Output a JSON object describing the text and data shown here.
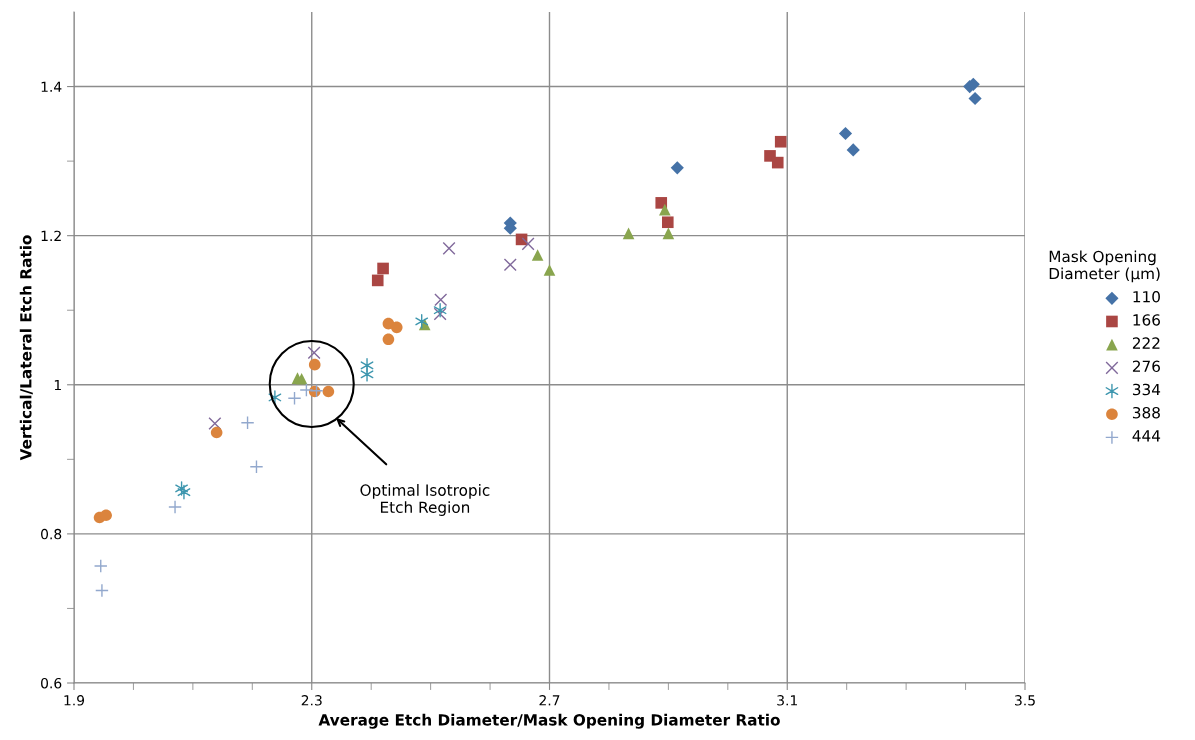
{
  "chart_data": {
    "type": "scatter",
    "xlabel": "Average Etch Diameter/Mask Opening Diameter Ratio",
    "ylabel": "Vertical/Lateral Etch Ratio",
    "legend_title": "Mask Opening\nDiameter (µm)",
    "xlim": [
      1.9,
      3.5
    ],
    "ylim": [
      0.6,
      1.5
    ],
    "xticks": [
      1.9,
      {
        "value": 2.0,
        "label": null
      },
      {
        "value": 2.1,
        "label": null
      },
      {
        "value": 2.2,
        "label": null
      },
      2.3,
      {
        "value": 2.4,
        "label": null
      },
      {
        "value": 2.5,
        "label": null
      },
      {
        "value": 2.6,
        "label": null
      },
      2.7,
      {
        "value": 2.8,
        "label": null
      },
      {
        "value": 2.9,
        "label": null
      },
      {
        "value": 3.0,
        "label": null
      },
      3.1,
      {
        "value": 3.2,
        "label": null
      },
      {
        "value": 3.3,
        "label": null
      },
      {
        "value": 3.4,
        "label": null
      },
      3.5
    ],
    "yticks": [
      0.6,
      {
        "value": 0.7,
        "label": null
      },
      0.8,
      {
        "value": 0.9,
        "label": null
      },
      1,
      {
        "value": 1.1,
        "label": null
      },
      1.2,
      {
        "value": 1.3,
        "label": null
      },
      1.4
    ],
    "grid": true,
    "legend": "right",
    "annotations": [
      "Optimal Isotropic\nEtch Region"
    ],
    "series": [
      {
        "name": "110",
        "color": "#4572a7",
        "marker": "diamond",
        "x": [
          2.634,
          2.634,
          2.915,
          3.198,
          3.211,
          3.407,
          3.413,
          3.416
        ],
        "values": [
          1.217,
          1.21,
          1.291,
          1.337,
          1.315,
          1.4,
          1.403,
          1.384
        ]
      },
      {
        "name": "166",
        "color": "#aa4643",
        "marker": "square",
        "x": [
          2.42,
          2.411,
          2.653,
          3.089,
          3.071,
          3.084,
          2.888,
          2.899
        ],
        "values": [
          1.156,
          1.14,
          1.195,
          1.326,
          1.307,
          1.298,
          1.244,
          1.218
        ]
      },
      {
        "name": "222",
        "color": "#89a54e",
        "marker": "triangle",
        "x": [
          2.894,
          2.833,
          2.9,
          2.68,
          2.7,
          2.49,
          2.276,
          2.283
        ],
        "values": [
          1.235,
          1.203,
          1.203,
          1.174,
          1.154,
          1.081,
          1.009,
          1.008
        ]
      },
      {
        "name": "276",
        "color": "#80699b",
        "marker": "cross",
        "x": [
          2.531,
          2.634,
          2.664,
          2.517,
          2.516,
          2.304,
          2.137
        ],
        "values": [
          1.183,
          1.161,
          1.189,
          1.114,
          1.095,
          1.043,
          0.948
        ]
      },
      {
        "name": "334",
        "color": "#3d96ae",
        "x": [
          2.393,
          2.393,
          2.485,
          2.516,
          2.238,
          2.081,
          2.085
        ],
        "values": [
          1.026,
          1.014,
          1.085,
          1.1,
          0.983,
          0.861,
          0.856
        ]
      },
      {
        "name": "388",
        "color": "#db843d",
        "marker": "circle",
        "x": [
          2.305,
          2.305,
          2.328,
          2.14,
          1.943,
          1.954,
          2.429,
          2.443,
          2.429
        ],
        "values": [
          1.027,
          0.991,
          0.991,
          0.936,
          0.822,
          0.825,
          1.082,
          1.077,
          1.061
        ]
      },
      {
        "name": "444",
        "color": "#92a8cd",
        "marker": "plus",
        "x": [
          1.945,
          1.947,
          2.07,
          2.192,
          2.207,
          2.271,
          2.291,
          2.308
        ],
        "values": [
          0.757,
          0.724,
          0.836,
          0.949,
          0.89,
          0.982,
          0.993,
          0.992
        ]
      }
    ]
  }
}
